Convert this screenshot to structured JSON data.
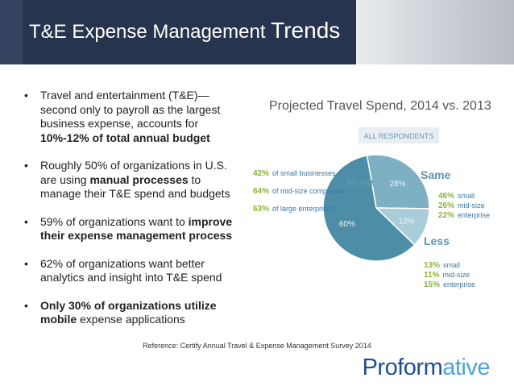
{
  "header": {
    "title": "T&E Expense Management",
    "title_emphasis": "Trends"
  },
  "bullets": [
    [
      {
        "text": "Travel and entertainment (T&E)—second only to payroll as the largest business expense, accounts for "
      },
      {
        "text": "10%-12% of total annual budget",
        "bold": true
      }
    ],
    [
      {
        "text": "Roughly 50% of organizations in U.S. are using "
      },
      {
        "text": "manual processes",
        "bold": true
      },
      {
        "text": " to manage their T&E spend and budgets"
      }
    ],
    [
      {
        "text": "59% of organizations want to "
      },
      {
        "text": "improve their expense management process",
        "bold": true
      }
    ],
    [
      {
        "text": "62% of organizations want better analytics and insight into T&E spend"
      }
    ],
    [
      {
        "text": "Only 30% of organizations utilize mobile",
        "bold": true
      },
      {
        "text": " expense applications"
      }
    ]
  ],
  "chart_data": {
    "type": "pie",
    "title": "Projected Travel Spend, 2014 vs. 2013",
    "subtitle": "ALL RESPONDENTS",
    "categories": [
      "More",
      "Same",
      "Less"
    ],
    "values": [
      60,
      28,
      12
    ],
    "value_labels": [
      "60%",
      "28%",
      "12%"
    ],
    "colors": [
      "#4d8ea6",
      "#7eb0c3",
      "#a8cdd9"
    ],
    "breakdowns": [
      [
        {
          "pct": "42%",
          "label": "of small businesses"
        },
        {
          "pct": "64%",
          "label": "of mid-size companies"
        },
        {
          "pct": "63%",
          "label": "of large enterprises"
        }
      ],
      [
        {
          "pct": "46%",
          "label": "small"
        },
        {
          "pct": "26%",
          "label": "mid-size"
        },
        {
          "pct": "22%",
          "label": "enterprise"
        }
      ],
      [
        {
          "pct": "13%",
          "label": "small"
        },
        {
          "pct": "11%",
          "label": "mid-size"
        },
        {
          "pct": "15%",
          "label": "enterprise"
        }
      ]
    ]
  },
  "reference": "Reference: Certify Annual Travel & Expense Management Survey 2014",
  "logo": {
    "main": "Proform",
    "accent": "ative"
  }
}
